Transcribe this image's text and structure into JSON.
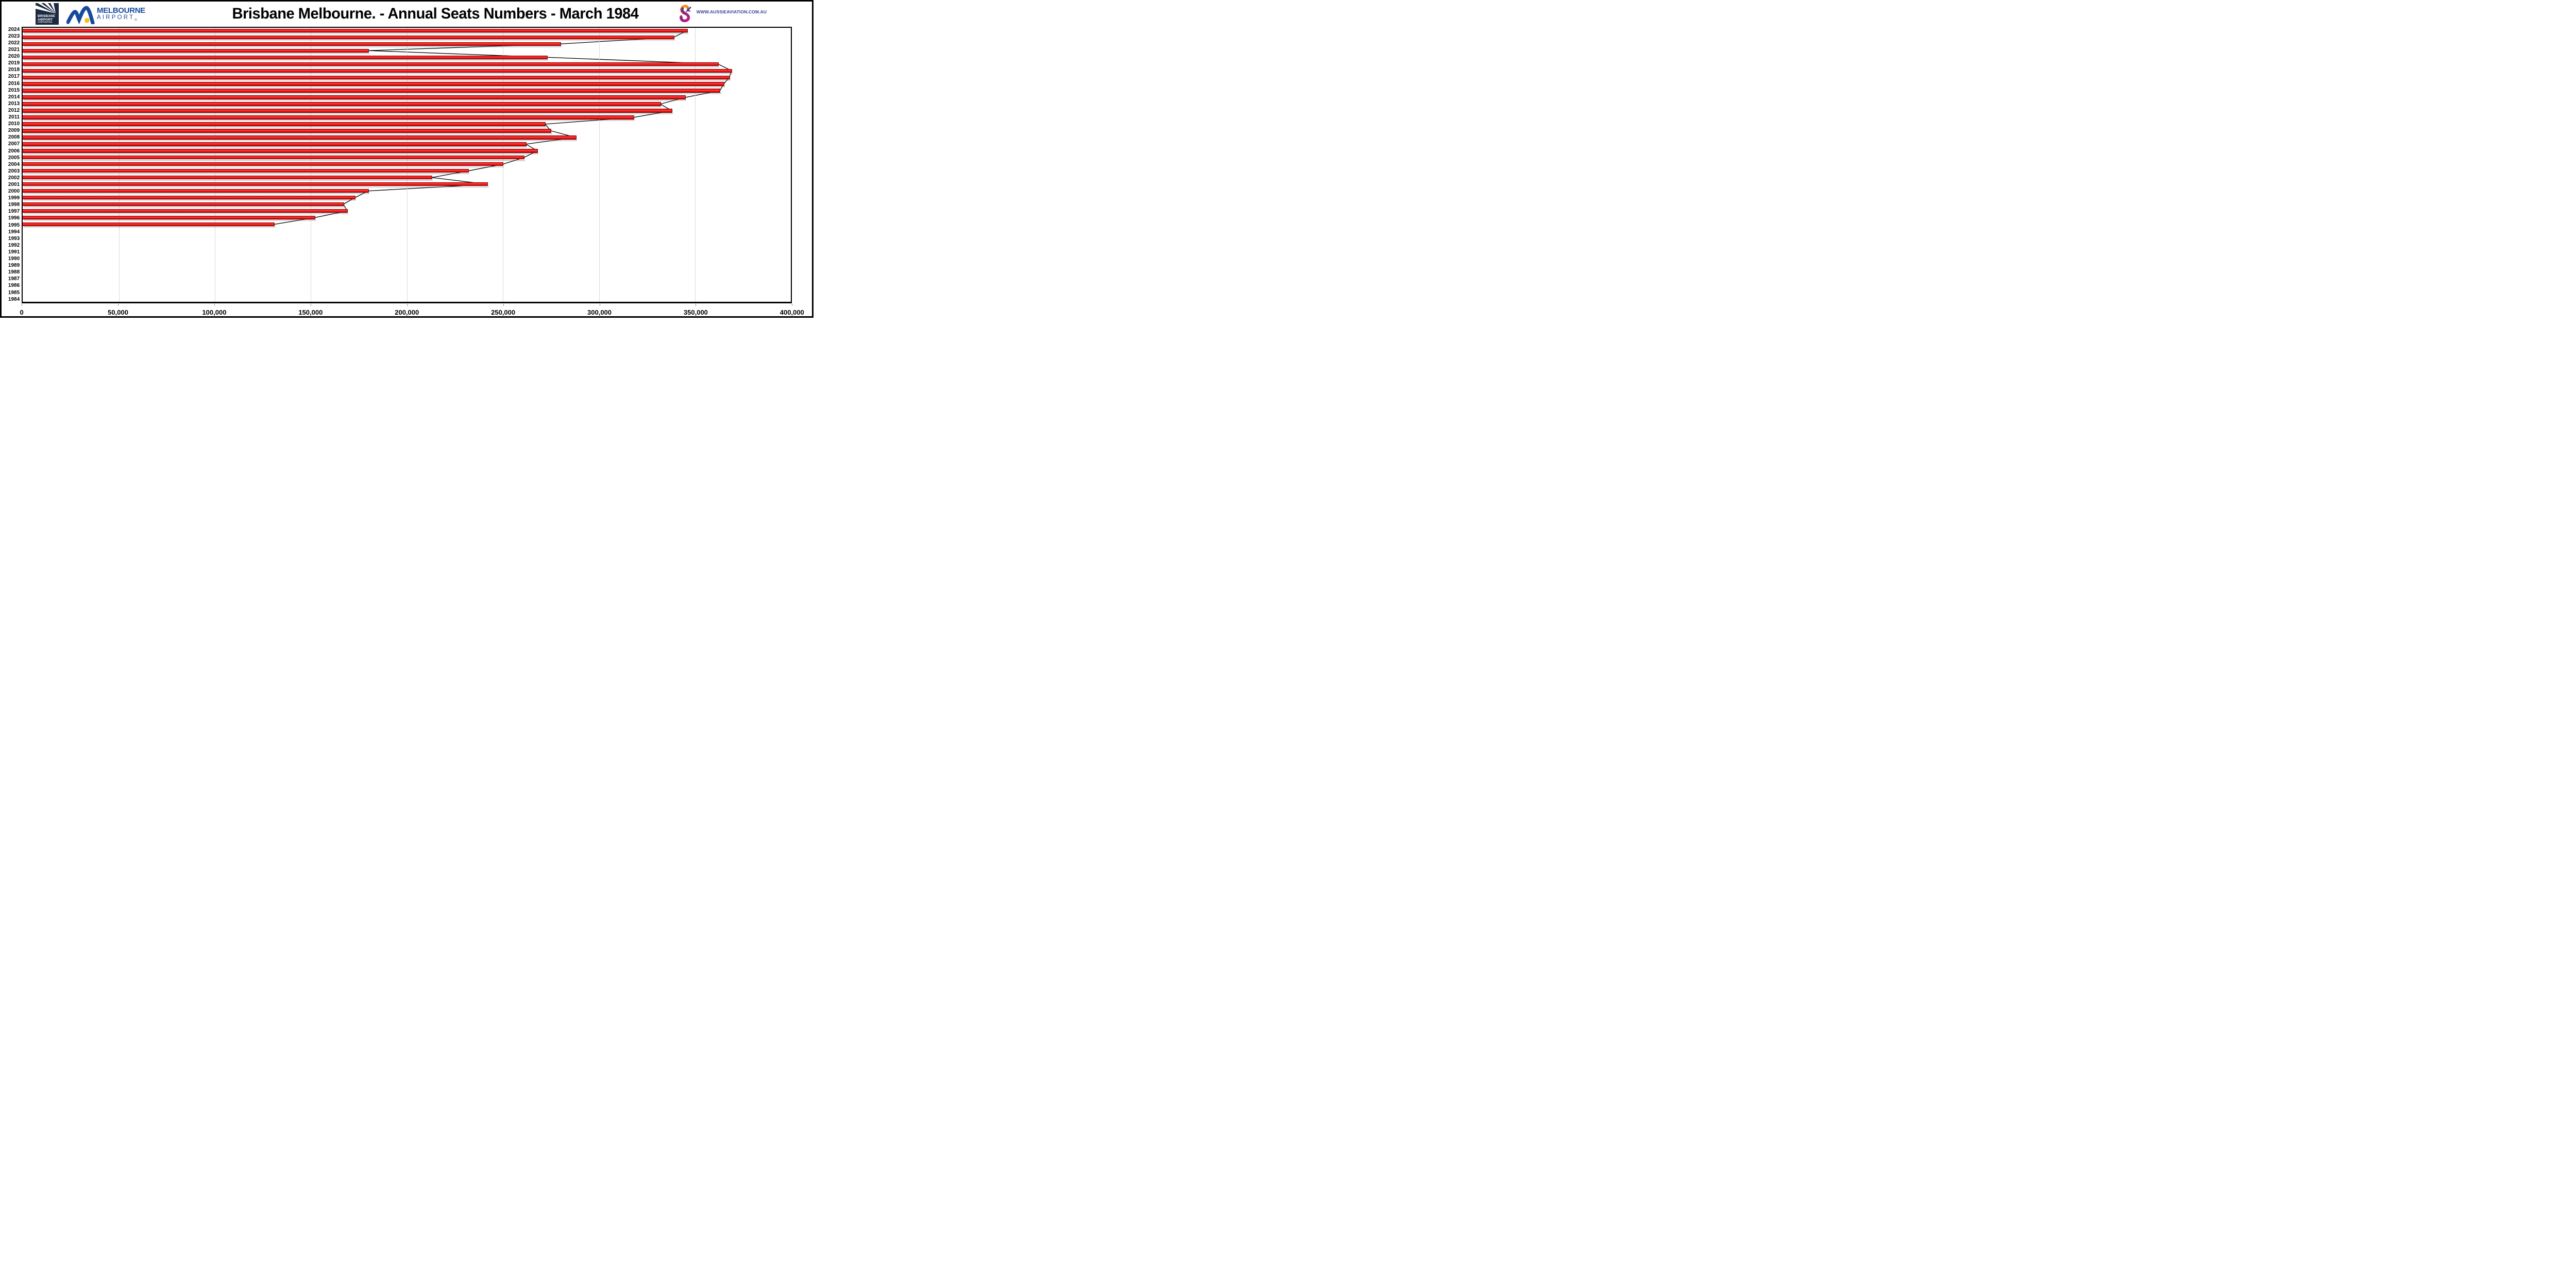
{
  "header": {
    "title": "Brisbane Melbourne. - Annual Seats Numbers - March 1984",
    "brisbane_logo": {
      "line1": "BRISBANE",
      "line2": "AIRPORT",
      "line3": "CORPORATION"
    },
    "melbourne_logo": {
      "line1": "MELBOURNE",
      "line2": "AIRPORT",
      "reg": "®"
    },
    "aussie_logo": {
      "url_text": "WWW.AUSSIEAVIATION.COM.AU"
    }
  },
  "chart_data": {
    "type": "bar",
    "orientation": "horizontal",
    "title": "Brisbane Melbourne. - Annual Seats Numbers - March 1984",
    "categories": [
      1984,
      1985,
      1986,
      1987,
      1988,
      1989,
      1990,
      1991,
      1992,
      1993,
      1994,
      1995,
      1996,
      1997,
      1998,
      1999,
      2000,
      2001,
      2002,
      2003,
      2004,
      2005,
      2006,
      2007,
      2008,
      2009,
      2010,
      2011,
      2012,
      2013,
      2014,
      2015,
      2016,
      2017,
      2018,
      2019,
      2020,
      2021,
      2022,
      2023,
      2024
    ],
    "values": [
      0,
      0,
      0,
      0,
      0,
      0,
      0,
      0,
      0,
      0,
      0,
      131000,
      152000,
      169000,
      167000,
      173000,
      180000,
      242000,
      213000,
      232000,
      250000,
      261000,
      268000,
      262000,
      288000,
      275000,
      272000,
      318000,
      338000,
      332000,
      345000,
      363000,
      365000,
      368000,
      369000,
      362000,
      273000,
      180000,
      280000,
      339000,
      346000
    ],
    "line_overlay": {
      "description": "black line connecting bar tips",
      "from_year": 1995,
      "to_year": 2024
    },
    "xlim": [
      0,
      400000
    ],
    "x_ticks": [
      0,
      50000,
      100000,
      150000,
      200000,
      250000,
      300000,
      350000,
      400000
    ],
    "x_tick_labels": [
      "0",
      "50,000",
      "100,000",
      "150,000",
      "200,000",
      "250,000",
      "300,000",
      "350,000",
      "400,000"
    ],
    "ylabel_order": "2024 at top, 1984 at bottom",
    "grid": "vertical gridlines at each 50,000",
    "bar_color": "#e81313",
    "line_color": "#000000",
    "gridline_color": "#d9d9d9",
    "axis_color": "#000000"
  }
}
